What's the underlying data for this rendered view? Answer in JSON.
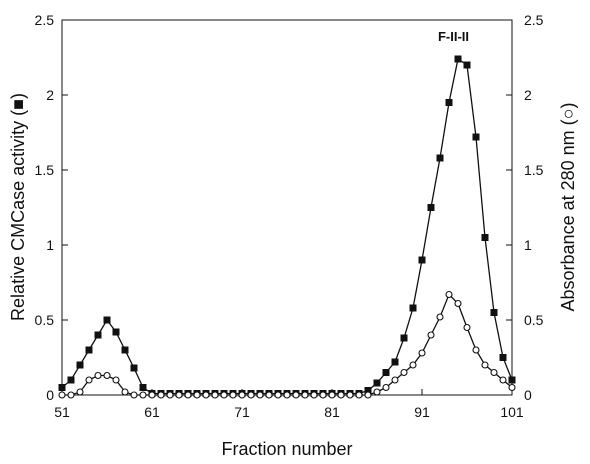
{
  "chart_data": {
    "type": "line",
    "xlabel": "Fraction number",
    "ylabel_left": "Relative CMCase activity (■)",
    "ylabel_right": "Absorbance at 280 nm (○)",
    "xlim": [
      51,
      101
    ],
    "ylim_left": [
      0,
      2.5
    ],
    "ylim_right": [
      0,
      2.5
    ],
    "x_ticks": [
      "51",
      "61",
      "71",
      "81",
      "91",
      "101"
    ],
    "y_ticks_left": [
      "0",
      "0.5",
      "1",
      "1.5",
      "2",
      "2.5"
    ],
    "y_ticks_right": [
      "0",
      "0.5",
      "1",
      "1.5",
      "2",
      "2.5"
    ],
    "annotation": {
      "text": "F-II-II",
      "x": 94.5,
      "y": 2.36
    },
    "legend": "none",
    "grid": false,
    "series": [
      {
        "marker": "filled-square",
        "axis": "left",
        "x": [
          51,
          52,
          53,
          54,
          55,
          56,
          57,
          58,
          59,
          60,
          61,
          62,
          63,
          64,
          65,
          66,
          67,
          68,
          69,
          70,
          71,
          72,
          73,
          74,
          75,
          76,
          77,
          78,
          79,
          80,
          81,
          82,
          83,
          84,
          85,
          86,
          87,
          88,
          89,
          90,
          91,
          92,
          93,
          94,
          95,
          96,
          97,
          98,
          99,
          100,
          101
        ],
        "y": [
          0.05,
          0.1,
          0.2,
          0.3,
          0.4,
          0.5,
          0.42,
          0.3,
          0.18,
          0.05,
          0.01,
          0.01,
          0.01,
          0.01,
          0.01,
          0.01,
          0.01,
          0.01,
          0.01,
          0.01,
          0.01,
          0.01,
          0.01,
          0.01,
          0.01,
          0.01,
          0.01,
          0.01,
          0.01,
          0.01,
          0.01,
          0.01,
          0.01,
          0.01,
          0.03,
          0.08,
          0.15,
          0.22,
          0.38,
          0.58,
          0.9,
          1.25,
          1.58,
          1.95,
          2.24,
          2.2,
          1.72,
          1.05,
          0.55,
          0.25,
          0.1
        ]
      },
      {
        "marker": "open-circle",
        "axis": "right",
        "x": [
          51,
          52,
          53,
          54,
          55,
          56,
          57,
          58,
          59,
          60,
          61,
          62,
          63,
          64,
          65,
          66,
          67,
          68,
          69,
          70,
          71,
          72,
          73,
          74,
          75,
          76,
          77,
          78,
          79,
          80,
          81,
          82,
          83,
          84,
          85,
          86,
          87,
          88,
          89,
          90,
          91,
          92,
          93,
          94,
          95,
          96,
          97,
          98,
          99,
          100,
          101
        ],
        "y": [
          0.0,
          0.0,
          0.02,
          0.1,
          0.13,
          0.13,
          0.1,
          0.02,
          0.0,
          0.0,
          0.0,
          0.0,
          0.0,
          0.0,
          0.0,
          0.0,
          0.0,
          0.0,
          0.0,
          0.0,
          0.0,
          0.0,
          0.0,
          0.0,
          0.0,
          0.0,
          0.0,
          0.0,
          0.0,
          0.0,
          0.0,
          0.0,
          0.0,
          0.0,
          0.0,
          0.02,
          0.05,
          0.1,
          0.15,
          0.2,
          0.28,
          0.4,
          0.52,
          0.67,
          0.61,
          0.45,
          0.3,
          0.2,
          0.15,
          0.1,
          0.05
        ]
      }
    ]
  }
}
